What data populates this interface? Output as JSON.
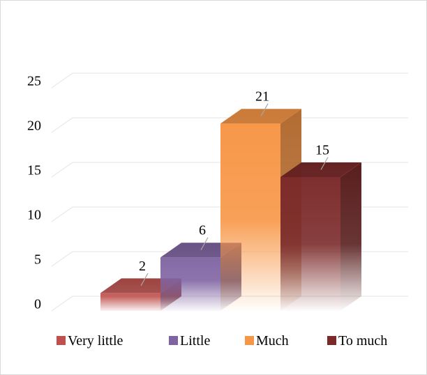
{
  "chart_data": {
    "type": "bar",
    "style": "3d-column",
    "title": "",
    "xlabel": "",
    "ylabel": "",
    "ylim": [
      0,
      25
    ],
    "yticks": [
      0,
      5,
      10,
      15,
      20,
      25
    ],
    "grid": true,
    "legend_position": "bottom",
    "categories": [
      "Very little",
      "Little",
      "Much",
      "To much"
    ],
    "values": [
      2,
      6,
      21,
      15
    ],
    "colors": {
      "Very little": "#c0504d",
      "Little": "#8064a2",
      "Much": "#f79646",
      "To much": "#7b2a2a"
    }
  }
}
